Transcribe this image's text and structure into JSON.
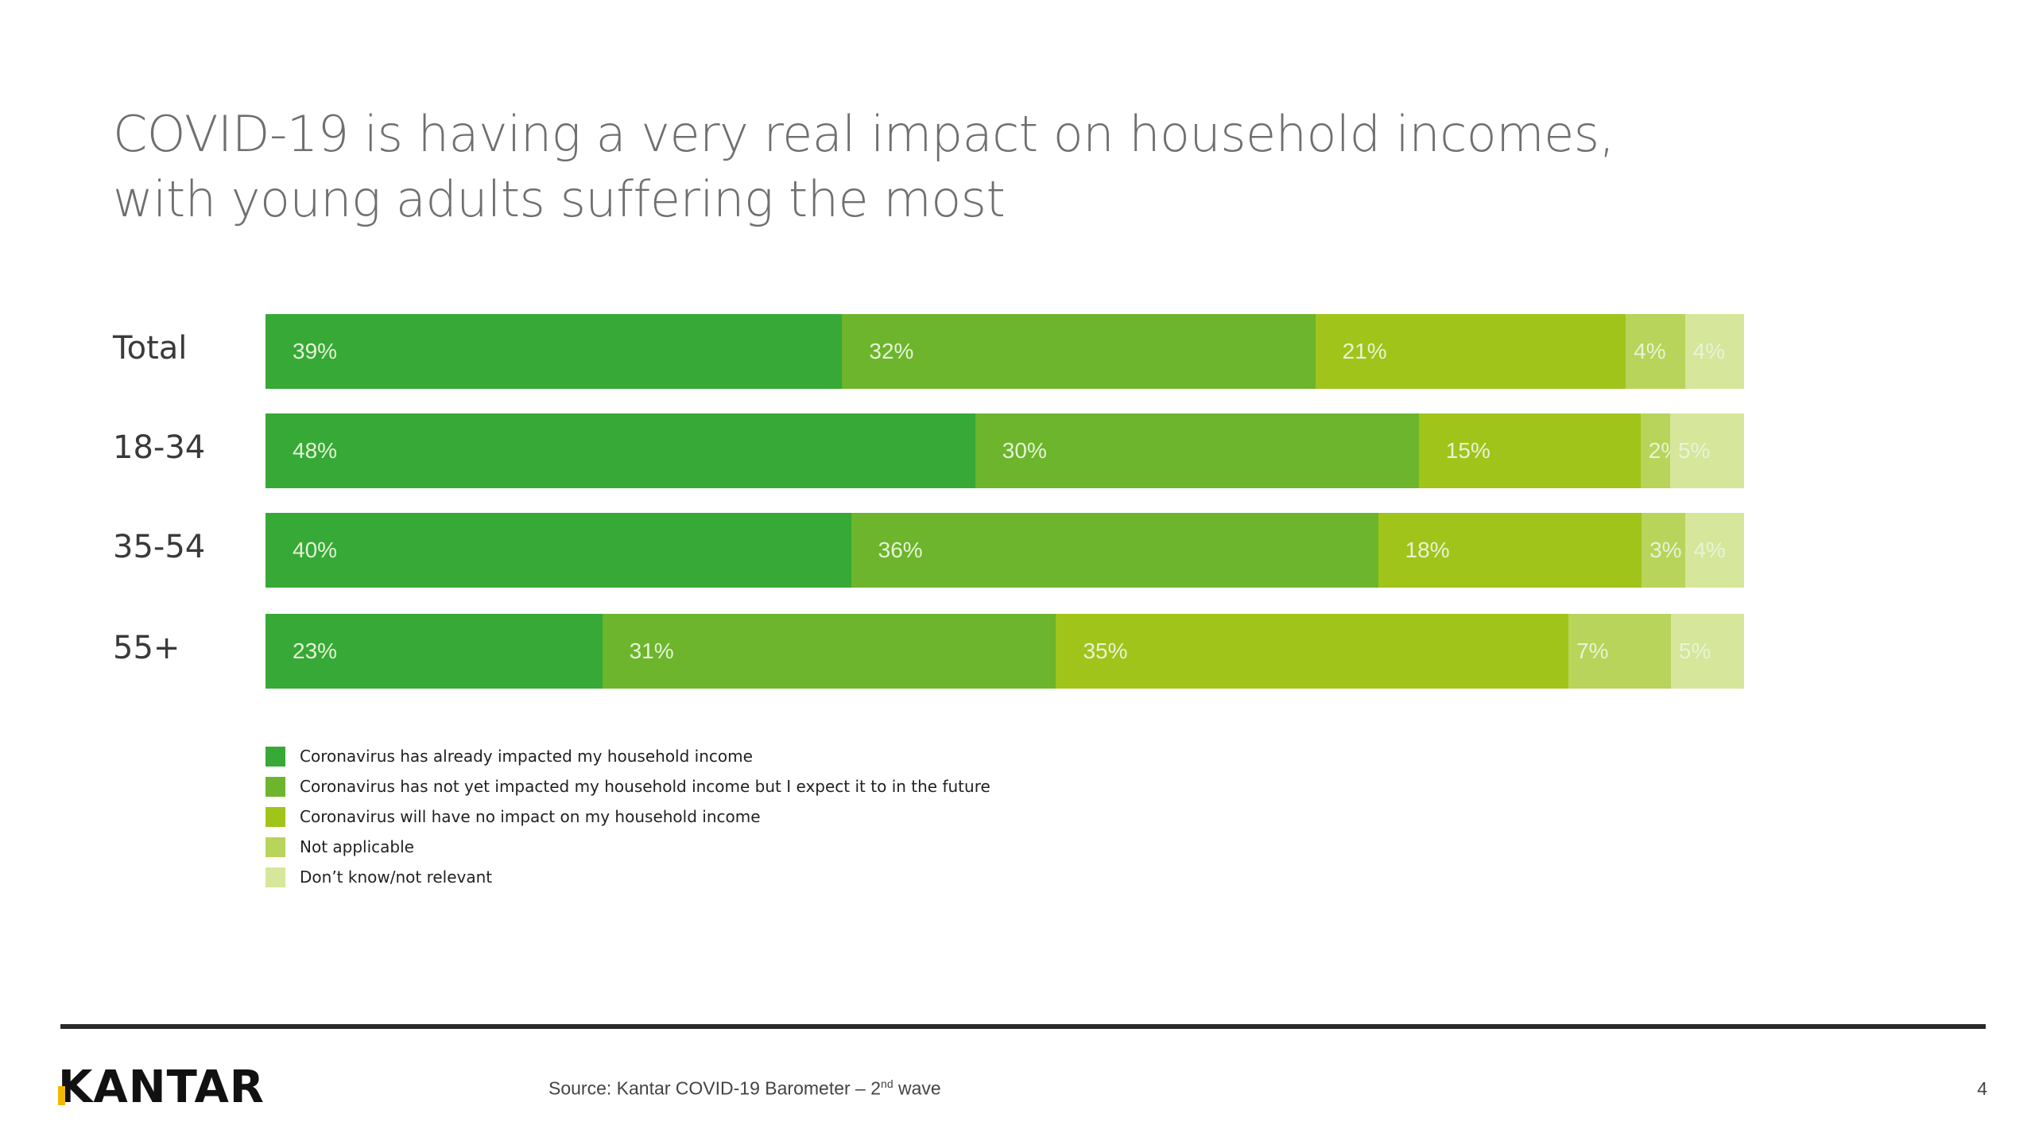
{
  "title": "COVID-19 is having a very real impact on household incomes, with young adults suffering the most",
  "colors": {
    "already": "#36a936",
    "future": "#6cb52c",
    "noimpact": "#a0c41a",
    "notapplicable": "#b8d45a",
    "dontknow": "#d6e69a",
    "bar_label_text": "#e6f4d8"
  },
  "chart_data": {
    "type": "bar",
    "orientation": "horizontal",
    "stacked": true,
    "categories": [
      "Total",
      "18-34",
      "35-54",
      "55+"
    ],
    "series": [
      {
        "name": "Coronavirus has already impacted my household income",
        "values": [
          39,
          48,
          40,
          23
        ],
        "labels": [
          "39%",
          "48%",
          "40%",
          "23%"
        ]
      },
      {
        "name": "Coronavirus has not yet impacted my household income but I expect it to in the future",
        "values": [
          32,
          30,
          36,
          31
        ],
        "labels": [
          "32%",
          "30%",
          "36%",
          "31%"
        ]
      },
      {
        "name": "Coronavirus will have no impact on my household income",
        "values": [
          21,
          15,
          18,
          35
        ],
        "labels": [
          "21%",
          "15%",
          "18%",
          "35%"
        ]
      },
      {
        "name": "Not applicable",
        "values": [
          4,
          2,
          3,
          7
        ],
        "labels": [
          "4%",
          "2%",
          "3%",
          "7%"
        ]
      },
      {
        "name": "Don’t know/not relevant",
        "values": [
          4,
          5,
          4,
          5
        ],
        "labels": [
          "4%",
          "5%",
          "4%",
          "5%"
        ]
      }
    ],
    "legend_position": "bottom-left",
    "grid": false
  },
  "footer": {
    "logo": "KANTAR",
    "source_prefix": "Source: Kantar COVID-19 Barometer – 2",
    "source_sup": "nd",
    "source_suffix": " wave",
    "page_number": "4"
  }
}
